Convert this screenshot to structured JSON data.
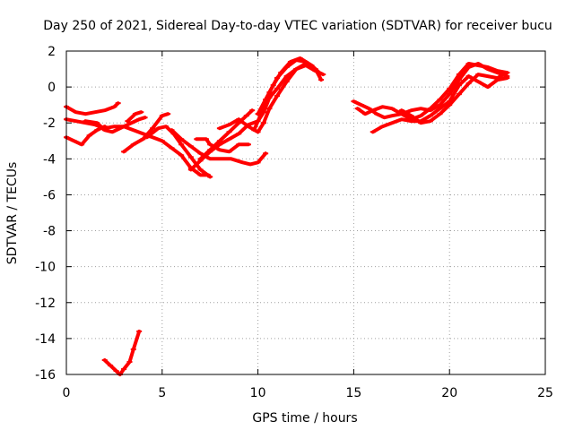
{
  "chart_data": {
    "type": "scatter",
    "title": "Day 250 of 2021, Sidereal Day-to-day VTEC variation (SDTVAR) for receiver bucu",
    "xlabel": "GPS time / hours",
    "ylabel": "SDTVAR / TECUs",
    "xlim": [
      0,
      25
    ],
    "ylim": [
      -16,
      2
    ],
    "xticks": [
      0,
      5,
      10,
      15,
      20,
      25
    ],
    "yticks": [
      2,
      0,
      -2,
      -4,
      -6,
      -8,
      -10,
      -12,
      -14,
      -16
    ],
    "grid": true,
    "color": "#ff0000",
    "series": [
      {
        "name": "trace-1",
        "points": [
          [
            0,
            -1.1
          ],
          [
            0.5,
            -1.4
          ],
          [
            1.0,
            -1.5
          ],
          [
            1.5,
            -1.4
          ],
          [
            2.0,
            -1.3
          ],
          [
            2.5,
            -1.1
          ],
          [
            2.7,
            -0.9
          ]
        ]
      },
      {
        "name": "trace-2",
        "points": [
          [
            0,
            -1.8
          ],
          [
            0.5,
            -1.9
          ],
          [
            1.0,
            -2.0
          ],
          [
            1.5,
            -2.1
          ],
          [
            2.0,
            -2.3
          ],
          [
            2.5,
            -2.2
          ],
          [
            3.0,
            -2.2
          ],
          [
            3.5,
            -2.4
          ],
          [
            4.0,
            -2.6
          ],
          [
            4.5,
            -2.8
          ],
          [
            5.0,
            -3.0
          ],
          [
            5.5,
            -3.4
          ],
          [
            6.0,
            -3.8
          ],
          [
            6.5,
            -4.5
          ],
          [
            7.0,
            -4.9
          ],
          [
            7.4,
            -4.9
          ]
        ]
      },
      {
        "name": "trace-3",
        "points": [
          [
            0,
            -2.8
          ],
          [
            0.4,
            -3.0
          ],
          [
            0.8,
            -3.2
          ],
          [
            1.2,
            -2.7
          ],
          [
            1.6,
            -2.4
          ],
          [
            2.0,
            -2.2
          ]
        ]
      },
      {
        "name": "trace-4",
        "points": [
          [
            1.0,
            -1.9
          ],
          [
            1.6,
            -2.0
          ],
          [
            2.0,
            -2.4
          ],
          [
            2.4,
            -2.5
          ],
          [
            3.0,
            -2.2
          ],
          [
            3.4,
            -2.0
          ],
          [
            3.8,
            -1.8
          ],
          [
            4.1,
            -1.7
          ]
        ]
      },
      {
        "name": "trace-5",
        "points": [
          [
            3.0,
            -3.6
          ],
          [
            3.5,
            -3.2
          ],
          [
            4.0,
            -2.9
          ],
          [
            4.5,
            -2.3
          ],
          [
            5.0,
            -1.6
          ],
          [
            5.3,
            -1.5
          ]
        ]
      },
      {
        "name": "trace-6",
        "points": [
          [
            3.2,
            -1.9
          ],
          [
            3.6,
            -1.5
          ],
          [
            3.9,
            -1.4
          ]
        ]
      },
      {
        "name": "trace-7",
        "points": [
          [
            4.2,
            -2.8
          ],
          [
            4.8,
            -2.3
          ],
          [
            5.2,
            -2.2
          ],
          [
            5.6,
            -2.6
          ],
          [
            6.0,
            -3.2
          ],
          [
            6.5,
            -3.9
          ],
          [
            7.0,
            -4.6
          ],
          [
            7.5,
            -5.0
          ]
        ]
      },
      {
        "name": "trace-8",
        "points": [
          [
            5.5,
            -2.4
          ],
          [
            6.0,
            -2.9
          ],
          [
            6.5,
            -3.3
          ],
          [
            7.0,
            -3.7
          ],
          [
            7.5,
            -4.0
          ],
          [
            8.0,
            -4.0
          ],
          [
            8.6,
            -4.0
          ],
          [
            9.2,
            -4.2
          ],
          [
            9.6,
            -4.3
          ],
          [
            10.0,
            -4.2
          ],
          [
            10.4,
            -3.7
          ]
        ]
      },
      {
        "name": "trace-9",
        "points": [
          [
            6.8,
            -2.9
          ],
          [
            7.3,
            -2.9
          ],
          [
            7.5,
            -3.2
          ],
          [
            8.0,
            -3.5
          ],
          [
            8.5,
            -3.6
          ],
          [
            9.0,
            -3.2
          ],
          [
            9.5,
            -3.2
          ]
        ]
      },
      {
        "name": "trace-10",
        "points": [
          [
            6.5,
            -4.6
          ],
          [
            7.0,
            -4.1
          ],
          [
            7.5,
            -3.6
          ],
          [
            8.0,
            -3.2
          ],
          [
            8.5,
            -2.9
          ],
          [
            9.0,
            -2.6
          ],
          [
            9.5,
            -2.1
          ],
          [
            10.0,
            -1.9
          ],
          [
            10.3,
            -1.4
          ],
          [
            10.6,
            -0.6
          ],
          [
            11.0,
            -0.1
          ],
          [
            11.5,
            0.6
          ],
          [
            12.0,
            1.0
          ],
          [
            12.5,
            1.2
          ],
          [
            13.0,
            0.9
          ],
          [
            13.4,
            0.7
          ]
        ]
      },
      {
        "name": "trace-11",
        "points": [
          [
            7.0,
            -4.0
          ],
          [
            7.5,
            -3.5
          ],
          [
            8.0,
            -3.0
          ],
          [
            8.5,
            -2.5
          ],
          [
            9.0,
            -2.0
          ],
          [
            9.4,
            -1.6
          ],
          [
            9.7,
            -1.3
          ]
        ]
      },
      {
        "name": "trace-12",
        "points": [
          [
            8.0,
            -2.3
          ],
          [
            8.5,
            -2.1
          ],
          [
            9.0,
            -1.8
          ],
          [
            9.5,
            -2.2
          ],
          [
            10.0,
            -2.5
          ],
          [
            10.3,
            -2.0
          ],
          [
            10.6,
            -1.2
          ],
          [
            11.0,
            -0.5
          ],
          [
            11.5,
            0.3
          ],
          [
            12.0,
            1.0
          ],
          [
            12.5,
            1.3
          ],
          [
            13.0,
            1.0
          ],
          [
            13.3,
            0.4
          ]
        ]
      },
      {
        "name": "trace-13",
        "points": [
          [
            9.8,
            -2.4
          ],
          [
            10.2,
            -1.4
          ],
          [
            10.6,
            -0.3
          ],
          [
            11.0,
            0.5
          ],
          [
            11.5,
            1.1
          ],
          [
            12.0,
            1.5
          ],
          [
            12.5,
            1.4
          ],
          [
            13.0,
            0.9
          ]
        ]
      },
      {
        "name": "trace-14",
        "points": [
          [
            10.0,
            -1.5
          ],
          [
            10.4,
            -0.7
          ],
          [
            10.8,
            0.1
          ],
          [
            11.2,
            0.8
          ],
          [
            11.7,
            1.4
          ],
          [
            12.2,
            1.6
          ],
          [
            12.8,
            1.2
          ],
          [
            13.2,
            0.8
          ]
        ]
      },
      {
        "name": "trace-15",
        "points": [
          [
            2.0,
            -15.2
          ],
          [
            2.3,
            -15.5
          ],
          [
            2.6,
            -15.8
          ],
          [
            2.8,
            -16.0
          ],
          [
            3.0,
            -15.7
          ],
          [
            3.3,
            -15.3
          ],
          [
            3.5,
            -14.6
          ],
          [
            3.8,
            -13.6
          ]
        ]
      },
      {
        "name": "trace-16",
        "points": [
          [
            15.0,
            -0.8
          ],
          [
            15.4,
            -1.0
          ],
          [
            15.8,
            -1.2
          ],
          [
            16.2,
            -1.5
          ],
          [
            16.6,
            -1.7
          ],
          [
            17.0,
            -1.6
          ],
          [
            17.5,
            -1.5
          ],
          [
            18.0,
            -1.3
          ],
          [
            18.5,
            -1.2
          ],
          [
            19.0,
            -1.3
          ],
          [
            19.5,
            -1.0
          ],
          [
            20.0,
            -0.4
          ],
          [
            20.5,
            0.4
          ],
          [
            21.0,
            1.1
          ],
          [
            21.5,
            1.3
          ],
          [
            22.0,
            1.0
          ],
          [
            22.5,
            0.8
          ],
          [
            23.0,
            0.6
          ]
        ]
      },
      {
        "name": "trace-17",
        "points": [
          [
            15.2,
            -1.2
          ],
          [
            15.6,
            -1.5
          ],
          [
            16.0,
            -1.3
          ],
          [
            16.5,
            -1.1
          ],
          [
            17.0,
            -1.2
          ],
          [
            17.5,
            -1.5
          ],
          [
            18.0,
            -1.8
          ],
          [
            18.5,
            -1.6
          ],
          [
            19.0,
            -1.2
          ],
          [
            19.5,
            -0.7
          ],
          [
            20.0,
            -0.1
          ],
          [
            20.5,
            0.7
          ],
          [
            21.0,
            1.3
          ],
          [
            21.5,
            1.2
          ],
          [
            22.0,
            1.1
          ],
          [
            22.5,
            0.9
          ],
          [
            23.0,
            0.8
          ]
        ]
      },
      {
        "name": "trace-18",
        "points": [
          [
            16.0,
            -2.5
          ],
          [
            16.5,
            -2.2
          ],
          [
            17.0,
            -2.0
          ],
          [
            17.5,
            -1.8
          ],
          [
            18.0,
            -1.9
          ],
          [
            18.5,
            -1.9
          ],
          [
            19.0,
            -1.6
          ],
          [
            19.5,
            -1.2
          ],
          [
            20.0,
            -0.8
          ],
          [
            20.5,
            0.1
          ],
          [
            21.0,
            0.6
          ],
          [
            21.5,
            0.3
          ],
          [
            22.0,
            0.0
          ],
          [
            22.5,
            0.4
          ],
          [
            23.0,
            0.5
          ]
        ]
      },
      {
        "name": "trace-19",
        "points": [
          [
            17.5,
            -1.3
          ],
          [
            18.0,
            -1.6
          ],
          [
            18.5,
            -2.0
          ],
          [
            19.0,
            -1.9
          ],
          [
            19.5,
            -1.5
          ],
          [
            20.0,
            -1.0
          ],
          [
            20.5,
            -0.4
          ],
          [
            21.0,
            0.2
          ],
          [
            21.5,
            0.7
          ],
          [
            22.0,
            0.6
          ],
          [
            22.5,
            0.5
          ],
          [
            23.0,
            0.8
          ]
        ]
      }
    ]
  }
}
